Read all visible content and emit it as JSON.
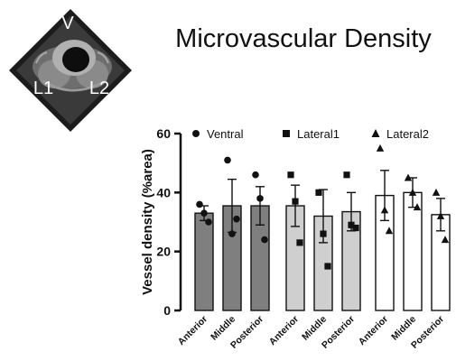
{
  "figure": {
    "title": "Microvascular Density"
  },
  "image_panel": {
    "labels": [
      "V",
      "L1",
      "L2"
    ]
  },
  "chart_data": {
    "type": "bar",
    "ylabel": "Vessel density (%area)",
    "xlabel": "",
    "ylim": [
      0,
      60
    ],
    "yticks": [
      0,
      20,
      40,
      60
    ],
    "grid": false,
    "legend_position": "top",
    "categories": [
      "Anterior",
      "Middle",
      "Posterior"
    ],
    "series": [
      {
        "name": "Ventral",
        "marker": "circle",
        "fill": "#7f7f7f",
        "values": [
          33,
          35.5,
          35.5
        ],
        "errors": [
          2.5,
          9,
          6.5
        ],
        "points": [
          [
            36,
            33,
            30
          ],
          [
            51,
            26,
            31
          ],
          [
            46,
            38,
            24
          ]
        ]
      },
      {
        "name": "Lateral1",
        "marker": "square",
        "fill": "#cfcfcf",
        "values": [
          35.5,
          32,
          33.5
        ],
        "errors": [
          7,
          9,
          6.5
        ],
        "points": [
          [
            46,
            37,
            23
          ],
          [
            40,
            26,
            15
          ],
          [
            46,
            29,
            28
          ]
        ]
      },
      {
        "name": "Lateral2",
        "marker": "triangle",
        "fill": "#ffffff",
        "values": [
          39,
          40,
          32.5
        ],
        "errors": [
          8.5,
          5,
          5.5
        ],
        "points": [
          [
            55,
            34,
            27
          ],
          [
            45,
            40,
            35
          ],
          [
            40,
            32,
            24
          ]
        ]
      }
    ]
  }
}
